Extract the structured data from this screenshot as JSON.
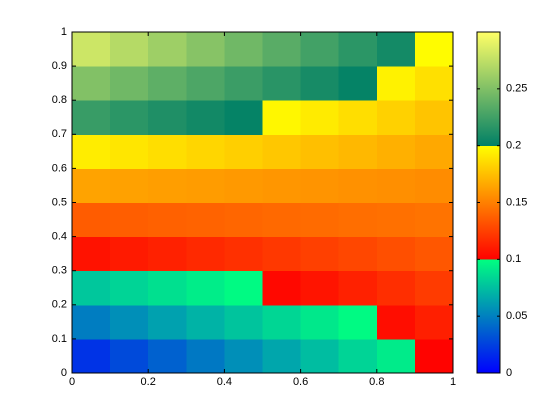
{
  "chart_data": {
    "type": "heatmap",
    "x": [
      0.05,
      0.15,
      0.25,
      0.35,
      0.45,
      0.55,
      0.65,
      0.75,
      0.85,
      0.95
    ],
    "y": [
      0.05,
      0.15,
      0.25,
      0.35,
      0.45,
      0.55,
      0.65,
      0.75,
      0.85,
      0.95
    ],
    "z": [
      [
        0.02,
        0.029,
        0.038,
        0.047,
        0.056,
        0.065,
        0.074,
        0.083,
        0.092,
        0.101
      ],
      [
        0.049,
        0.056,
        0.063,
        0.07,
        0.077,
        0.084,
        0.091,
        0.098,
        0.105,
        0.112
      ],
      [
        0.078,
        0.083,
        0.088,
        0.093,
        0.098,
        0.103,
        0.108,
        0.113,
        0.118,
        0.123
      ],
      [
        0.107,
        0.11,
        0.113,
        0.116,
        0.119,
        0.122,
        0.125,
        0.128,
        0.131,
        0.134
      ],
      [
        0.136,
        0.137,
        0.138,
        0.139,
        0.14,
        0.141,
        0.142,
        0.143,
        0.144,
        0.145
      ],
      [
        0.164,
        0.163,
        0.162,
        0.161,
        0.16,
        0.159,
        0.158,
        0.157,
        0.156,
        0.155
      ],
      [
        0.193,
        0.19,
        0.187,
        0.184,
        0.181,
        0.178,
        0.175,
        0.172,
        0.169,
        0.166
      ],
      [
        0.222,
        0.217,
        0.212,
        0.207,
        0.202,
        0.197,
        0.192,
        0.187,
        0.182,
        0.177
      ],
      [
        0.251,
        0.244,
        0.237,
        0.23,
        0.223,
        0.216,
        0.209,
        0.202,
        0.195,
        0.188
      ],
      [
        0.28,
        0.271,
        0.262,
        0.253,
        0.244,
        0.235,
        0.226,
        0.217,
        0.208,
        0.199
      ]
    ],
    "xlim": [
      0,
      1
    ],
    "ylim": [
      0,
      1
    ],
    "xticks": [
      0,
      0.2,
      0.4,
      0.6,
      0.8,
      1
    ],
    "yticks": [
      0,
      0.1,
      0.2,
      0.3,
      0.4,
      0.5,
      0.6,
      0.7,
      0.8,
      0.9,
      1
    ],
    "clim": [
      0,
      0.3
    ],
    "cticks": [
      0,
      0.05,
      0.1,
      0.15,
      0.2,
      0.25
    ],
    "colormap": [
      [
        "#0000ff",
        "#00ff80"
      ],
      [
        "#ff0000",
        "#ffff00"
      ],
      [
        "#008066",
        "#ffff66"
      ]
    ]
  }
}
